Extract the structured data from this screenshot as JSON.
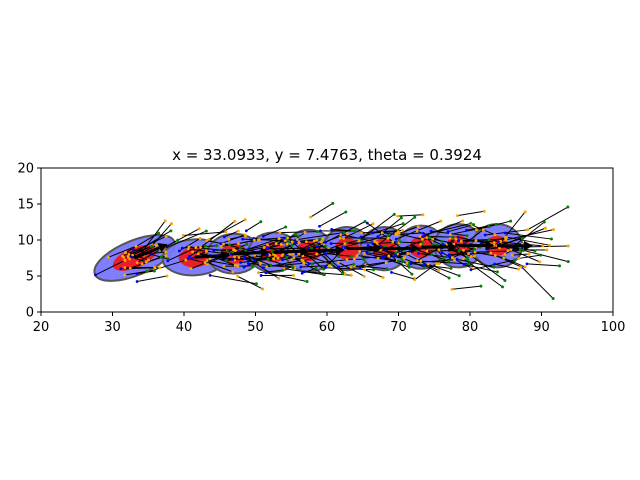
{
  "chart_data": {
    "type": "scatter",
    "title": "x = 33.0933, y = 7.4763, theta = 0.3924",
    "xlabel": "",
    "ylabel": "",
    "xlim": [
      20,
      100
    ],
    "ylim": [
      0,
      20
    ],
    "xticks": [
      20,
      30,
      40,
      50,
      60,
      70,
      80,
      90,
      100
    ],
    "yticks": [
      0,
      5,
      10,
      15,
      20
    ],
    "grid": false,
    "colors": {
      "covariance_ellipse": "#7777ff",
      "covariance_edge": "#555555",
      "inner_ellipse": "#e8202a",
      "particles_orange": "#ffa500",
      "particles_green": "#008000",
      "particles_blue": "#0000ee",
      "pose_arrow": "#000000"
    },
    "poses": [
      {
        "x": 33.1,
        "y": 7.5,
        "theta": 0.39,
        "cov_w": 12.0,
        "cov_h": 4.8,
        "inner_w": 6.5,
        "inner_h": 2.8
      },
      {
        "x": 41.5,
        "y": 7.6,
        "theta": 0.06,
        "cov_w": 9.0,
        "cov_h": 5.0,
        "inner_w": 4.5,
        "inner_h": 2.8
      },
      {
        "x": 47.0,
        "y": 8.1,
        "theta": 0.04,
        "cov_w": 7.5,
        "cov_h": 5.5,
        "inner_w": 3.8,
        "inner_h": 2.8
      },
      {
        "x": 52.5,
        "y": 8.3,
        "theta": 0.03,
        "cov_w": 7.0,
        "cov_h": 5.5,
        "inner_w": 3.6,
        "inner_h": 2.8
      },
      {
        "x": 57.5,
        "y": 8.5,
        "theta": 0.02,
        "cov_w": 6.8,
        "cov_h": 5.8,
        "inner_w": 3.5,
        "inner_h": 2.9
      },
      {
        "x": 62.8,
        "y": 8.8,
        "theta": 0.02,
        "cov_w": 6.6,
        "cov_h": 6.0,
        "inner_w": 3.4,
        "inner_h": 3.0
      },
      {
        "x": 68.0,
        "y": 8.8,
        "theta": 0.01,
        "cov_w": 6.6,
        "cov_h": 6.0,
        "inner_w": 3.4,
        "inner_h": 3.0
      },
      {
        "x": 73.2,
        "y": 9.0,
        "theta": 0.01,
        "cov_w": 6.6,
        "cov_h": 6.0,
        "inner_w": 3.4,
        "inner_h": 3.0
      },
      {
        "x": 78.4,
        "y": 9.2,
        "theta": 0.01,
        "cov_w": 6.8,
        "cov_h": 6.0,
        "inner_w": 3.4,
        "inner_h": 2.9
      },
      {
        "x": 83.8,
        "y": 9.2,
        "theta": 0.0,
        "cov_w": 7.0,
        "cov_h": 6.0,
        "inner_w": 3.2,
        "inner_h": 2.8
      }
    ]
  }
}
